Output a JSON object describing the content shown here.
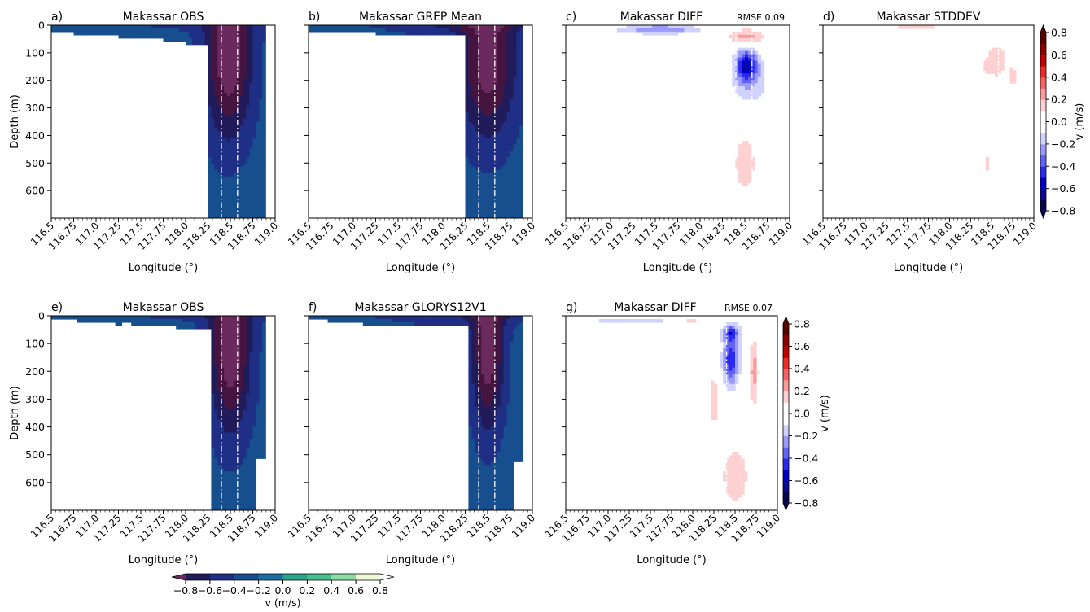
{
  "chart_data": [
    {
      "type": "heatmap",
      "label": "a)",
      "title": "Makassar OBS",
      "xlabel": "Longitude (°)",
      "ylabel": "Depth (m)",
      "xlim": [
        116.5,
        119.0
      ],
      "ylim": [
        700,
        0
      ],
      "xticks": [
        "116.5",
        "116.75",
        "117.0",
        "117.25",
        "117.5",
        "117.75",
        "118.0",
        "118.25",
        "118.5",
        "118.75",
        "119.0"
      ],
      "yticks": [
        "0",
        "100",
        "200",
        "300",
        "400",
        "500",
        "600"
      ],
      "x": [
        116.5,
        116.75,
        117.0,
        117.25,
        117.5,
        117.75,
        118.0,
        118.25,
        118.35,
        118.45,
        118.55,
        118.65,
        118.75,
        118.85
      ],
      "y": [
        0,
        25,
        50,
        75,
        100,
        150,
        200,
        250,
        300,
        350,
        400,
        500,
        600,
        700
      ],
      "bottom": [
        20,
        35,
        40,
        45,
        50,
        60,
        70,
        700,
        700,
        700,
        700,
        700,
        700,
        700
      ],
      "max_depth": 700,
      "core_lon": 118.48,
      "core_depth": 120,
      "core_max": -0.85,
      "half_lon": 0.25,
      "half_depth": 280,
      "top_speed": -0.15,
      "dash_lines": [
        118.4,
        118.58
      ]
    },
    {
      "type": "heatmap",
      "label": "b)",
      "title": "Makassar GREP Mean",
      "xlabel": "Longitude (°)",
      "xlim": [
        116.5,
        119.0
      ],
      "ylim": [
        700,
        0
      ],
      "xticks": [
        "116.5",
        "116.75",
        "117.0",
        "117.25",
        "117.5",
        "117.75",
        "118.0",
        "118.25",
        "118.5",
        "118.75",
        "119.0"
      ],
      "x": [
        116.5,
        116.75,
        117.0,
        117.25,
        117.5,
        117.75,
        118.0,
        118.25,
        118.35,
        118.45,
        118.55,
        118.65,
        118.75,
        118.85
      ],
      "y": [
        0,
        25,
        50,
        75,
        100,
        150,
        200,
        250,
        300,
        350,
        400,
        500,
        600,
        700
      ],
      "bottom": [
        20,
        20,
        25,
        30,
        30,
        35,
        40,
        700,
        700,
        700,
        700,
        700,
        700,
        700
      ],
      "max_depth": 700,
      "core_lon": 118.5,
      "core_depth": 140,
      "core_max": -0.8,
      "half_lon": 0.3,
      "half_depth": 260,
      "top_speed": -0.35,
      "dash_lines": [
        118.4,
        118.58
      ]
    },
    {
      "type": "heatmap",
      "label": "c)",
      "title": "Makassar DIFF",
      "annotation": "RMSE 0.09",
      "xlabel": "Longitude (°)",
      "xlim": [
        116.5,
        119.0
      ],
      "ylim": [
        700,
        0
      ],
      "xticks": [
        "116.5",
        "116.75",
        "117.0",
        "117.25",
        "117.5",
        "117.75",
        "118.0",
        "118.25",
        "118.5",
        "118.75",
        "119.0"
      ],
      "blobs": [
        {
          "lon": 117.55,
          "depth": 15,
          "slon": 0.45,
          "sdepth": 15,
          "amp": -0.3
        },
        {
          "lon": 118.52,
          "depth": 40,
          "slon": 0.2,
          "sdepth": 25,
          "amp": 0.25
        },
        {
          "lon": 118.52,
          "depth": 145,
          "slon": 0.12,
          "sdepth": 55,
          "amp": -0.55
        },
        {
          "lon": 118.55,
          "depth": 220,
          "slon": 0.22,
          "sdepth": 90,
          "amp": -0.18
        },
        {
          "lon": 118.5,
          "depth": 500,
          "slon": 0.22,
          "sdepth": 200,
          "amp": 0.12
        }
      ],
      "dash_lines": [
        118.4,
        118.58
      ]
    },
    {
      "type": "heatmap",
      "label": "d)",
      "title": "Makassar STDDEV",
      "xlabel": "Longitude (°)",
      "xlim": [
        116.5,
        119.0
      ],
      "ylim": [
        700,
        0
      ],
      "xticks": [
        "116.5",
        "116.75",
        "117.0",
        "117.25",
        "117.5",
        "117.75",
        "118.0",
        "118.25",
        "118.5",
        "118.75",
        "119.0"
      ],
      "blobs": [
        {
          "lon": 117.6,
          "depth": 8,
          "slon": 0.6,
          "sdepth": 10,
          "amp": 0.12
        },
        {
          "lon": 118.55,
          "depth": 130,
          "slon": 0.2,
          "sdepth": 100,
          "amp": 0.13
        },
        {
          "lon": 118.45,
          "depth": 150,
          "slon": 0.05,
          "sdepth": 20,
          "amp": 0.1
        },
        {
          "lon": 118.75,
          "depth": 190,
          "slon": 0.05,
          "sdepth": 40,
          "amp": 0.12
        },
        {
          "lon": 118.45,
          "depth": 500,
          "slon": 0.05,
          "sdepth": 50,
          "amp": 0.12
        }
      ],
      "dash_lines": [
        118.4,
        118.58
      ]
    },
    {
      "type": "heatmap",
      "label": "e)",
      "title": "Makassar OBS",
      "xlabel": "Longitude (°)",
      "ylabel": "Depth (m)",
      "xlim": [
        116.5,
        119.0
      ],
      "ylim": [
        700,
        0
      ],
      "xticks": [
        "116.5",
        "116.75",
        "117.0",
        "117.25",
        "117.5",
        "117.75",
        "118.0",
        "118.25",
        "118.5",
        "118.75",
        "119.0"
      ],
      "yticks": [
        "0",
        "100",
        "200",
        "300",
        "400",
        "500",
        "600"
      ],
      "x": [
        116.5,
        116.6,
        116.7,
        116.8,
        116.9,
        117.0,
        117.1,
        117.2,
        117.3,
        117.4,
        117.5,
        117.6,
        117.7,
        117.8,
        117.9,
        118.0,
        118.1,
        118.2,
        118.3,
        118.4,
        118.5,
        118.6,
        118.7,
        118.8,
        118.9
      ],
      "y": [
        0,
        25,
        50,
        75,
        100,
        150,
        200,
        250,
        300,
        350,
        400,
        500,
        600,
        700
      ],
      "bottom": [
        15,
        15,
        15,
        20,
        20,
        25,
        25,
        30,
        25,
        35,
        35,
        35,
        40,
        40,
        45,
        45,
        45,
        45,
        700,
        700,
        700,
        700,
        700,
        510,
        0
      ],
      "max_depth": 700,
      "core_lon": 118.5,
      "core_depth": 120,
      "core_max": -0.85,
      "half_lon": 0.22,
      "half_depth": 290,
      "top_speed": -0.15,
      "dash_lines": [
        118.4,
        118.58
      ]
    },
    {
      "type": "heatmap",
      "label": "f)",
      "title": "Makassar GLORYS12V1",
      "xlabel": "Longitude (°)",
      "xlim": [
        116.5,
        119.0
      ],
      "ylim": [
        700,
        0
      ],
      "xticks": [
        "116.5",
        "116.75",
        "117.0",
        "117.25",
        "117.5",
        "117.75",
        "118.0",
        "118.25",
        "118.5",
        "118.75",
        "119.0"
      ],
      "x": [
        116.5,
        116.6,
        116.7,
        116.8,
        116.9,
        117.0,
        117.1,
        117.2,
        117.3,
        117.4,
        117.5,
        117.6,
        117.7,
        117.8,
        117.9,
        118.0,
        118.1,
        118.2,
        118.3,
        118.4,
        118.5,
        118.6,
        118.7,
        118.8,
        118.9
      ],
      "y": [
        0,
        25,
        50,
        75,
        100,
        150,
        200,
        250,
        300,
        350,
        400,
        500,
        600,
        700
      ],
      "bottom": [
        15,
        15,
        20,
        20,
        25,
        25,
        30,
        30,
        30,
        35,
        35,
        35,
        35,
        40,
        40,
        40,
        40,
        40,
        700,
        700,
        700,
        700,
        700,
        520,
        0
      ],
      "max_depth": 700,
      "core_lon": 118.5,
      "core_depth": 120,
      "core_max": -0.85,
      "half_lon": 0.17,
      "half_depth": 270,
      "top_speed": -0.3,
      "dash_lines": [
        118.4,
        118.58
      ]
    },
    {
      "type": "heatmap",
      "label": "g)",
      "title": "Makassar DIFF",
      "annotation": "RMSE 0.07",
      "xlabel": "Longitude (°)",
      "xlim": [
        116.5,
        119.0
      ],
      "ylim": [
        700,
        0
      ],
      "xticks": [
        "116.5",
        "116.75",
        "117.0",
        "117.25",
        "117.5",
        "117.75",
        "118.0",
        "118.25",
        "118.5",
        "118.75",
        "119.0"
      ],
      "blobs": [
        {
          "lon": 117.3,
          "depth": 15,
          "slon": 0.5,
          "sdepth": 10,
          "amp": -0.2
        },
        {
          "lon": 117.95,
          "depth": 20,
          "slon": 0.2,
          "sdepth": 10,
          "amp": 0.15
        },
        {
          "lon": 118.45,
          "depth": 160,
          "slon": 0.09,
          "sdepth": 90,
          "amp": -0.5
        },
        {
          "lon": 118.45,
          "depth": 60,
          "slon": 0.1,
          "sdepth": 30,
          "amp": -0.35
        },
        {
          "lon": 118.72,
          "depth": 200,
          "slon": 0.05,
          "sdepth": 120,
          "amp": 0.25
        },
        {
          "lon": 118.25,
          "depth": 300,
          "slon": 0.04,
          "sdepth": 100,
          "amp": 0.18
        },
        {
          "lon": 118.5,
          "depth": 580,
          "slon": 0.25,
          "sdepth": 170,
          "amp": 0.13
        }
      ],
      "dash_lines": [
        118.4,
        118.58
      ]
    }
  ],
  "colorbar_div": {
    "label": "v (m/s)",
    "ticks": [
      "0.8",
      "0.6",
      "0.4",
      "0.2",
      "0.0",
      "−0.2",
      "−0.4",
      "−0.6",
      "−0.8"
    ],
    "levels": [
      -0.8,
      0.8
    ],
    "colors": [
      "#08074d",
      "#0b0b8e",
      "#0000c4",
      "#2a2af0",
      "#6262f7",
      "#9a9afb",
      "#d1d1fd",
      "#ffffff",
      "#ffffff",
      "#fdd1d1",
      "#fb9a9a",
      "#f76262",
      "#f02a2a",
      "#c40000",
      "#8e0000",
      "#5a0000"
    ]
  },
  "colorbar_viridis": {
    "label": "v (m/s)",
    "ticks": [
      "−0.8",
      "−0.6",
      "−0.4",
      "−0.2",
      "0.0",
      "0.2",
      "0.4",
      "0.6",
      "0.8"
    ],
    "colors": [
      "#6a2a5e",
      "#45153f",
      "#211b5a",
      "#1f2f85",
      "#174e8e",
      "#1d6ea0",
      "#2a8ea2",
      "#2ba48c",
      "#47c08e",
      "#8fdca2",
      "#c8efc2",
      "#eff9d6",
      "#ffffff"
    ]
  }
}
